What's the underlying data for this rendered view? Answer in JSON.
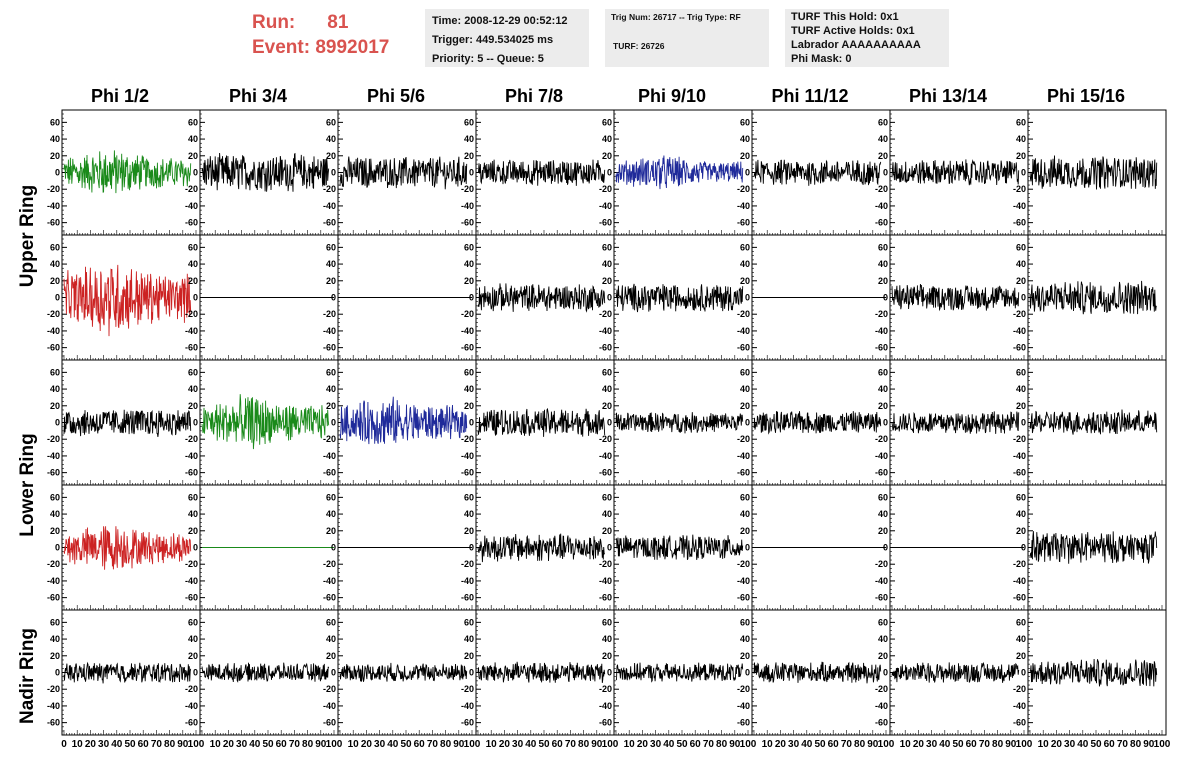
{
  "header": {
    "run_label": "Run:",
    "run_value": "81",
    "event_label": "Event:",
    "event_value": "8992017",
    "time": "Time: 2008-12-29 00:52:12",
    "trigger": "Trigger: 449.534025 ms",
    "priority": "Priority: 5 -- Queue: 5",
    "trig_num": "Trig Num: 26717 -- Trig Type: RF",
    "turf": "TURF: 26726",
    "turf_hold": "TURF This Hold: 0x1",
    "turf_active": "TURF Active Holds: 0x1",
    "labrador": "Labrador AAAAAAAAAA",
    "phi_mask": "Phi Mask: 0"
  },
  "columns": [
    "Phi 1/2",
    "Phi 3/4",
    "Phi 5/6",
    "Phi 7/8",
    "Phi 9/10",
    "Phi 11/12",
    "Phi 13/14",
    "Phi 15/16"
  ],
  "rings": [
    "Upper Ring",
    "Lower Ring",
    "Nadir Ring"
  ],
  "chart_data": {
    "type": "line",
    "rows": 5,
    "cols": 8,
    "ylim": [
      -70,
      70
    ],
    "yticks": [
      -60,
      -40,
      -20,
      0,
      20,
      40,
      60
    ],
    "xlim": [
      0,
      100
    ],
    "xticks": [
      0,
      10,
      20,
      30,
      40,
      50,
      60,
      70,
      80,
      90,
      100
    ],
    "colors": {
      "black": "#000000",
      "green": "#1a8a1a",
      "red": "#cc2222",
      "blue": "#1f2a9a"
    },
    "panels": [
      [
        "green",
        "black",
        "black",
        "black",
        "blue",
        "black",
        "black",
        "black"
      ],
      [
        "red",
        "flat",
        "flat",
        "black",
        "black",
        "flat",
        "black",
        "black"
      ],
      [
        "black",
        "green",
        "blue",
        "black",
        "black",
        "black",
        "black",
        "black"
      ],
      [
        "red",
        "flat-green",
        "flat",
        "black",
        "black",
        "flat",
        "flat",
        "black"
      ],
      [
        "black",
        "black",
        "black",
        "black",
        "black",
        "black",
        "black",
        "black"
      ]
    ],
    "amplitudes": [
      [
        22,
        20,
        17,
        14,
        16,
        14,
        14,
        18
      ],
      [
        35,
        0,
        0,
        15,
        15,
        0,
        14,
        18
      ],
      [
        15,
        25,
        24,
        15,
        11,
        12,
        12,
        13
      ],
      [
        22,
        0,
        0,
        15,
        13,
        0,
        0,
        17
      ],
      [
        11,
        10,
        10,
        11,
        10,
        11,
        11,
        15
      ]
    ]
  }
}
